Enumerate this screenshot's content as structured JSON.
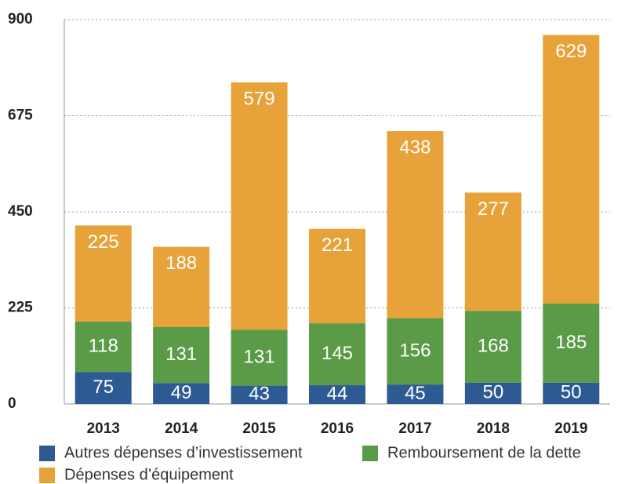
{
  "chart_data": {
    "type": "stacked_bar",
    "categories": [
      "2013",
      "2014",
      "2015",
      "2016",
      "2017",
      "2018",
      "2019"
    ],
    "series": [
      {
        "name": "Autres dépenses d’investissement",
        "color": "#2e5a94",
        "values": [
          75,
          49,
          43,
          44,
          45,
          50,
          50
        ]
      },
      {
        "name": "Remboursement de la dette",
        "color": "#5b9a47",
        "values": [
          118,
          131,
          131,
          145,
          156,
          168,
          185
        ]
      },
      {
        "name": "Dépenses d’équipement",
        "color": "#e8a23a",
        "values": [
          225,
          188,
          579,
          221,
          438,
          277,
          629
        ]
      }
    ],
    "ylim": [
      0,
      900
    ],
    "yticks": [
      0,
      225,
      450,
      675,
      900
    ],
    "grid": true
  }
}
